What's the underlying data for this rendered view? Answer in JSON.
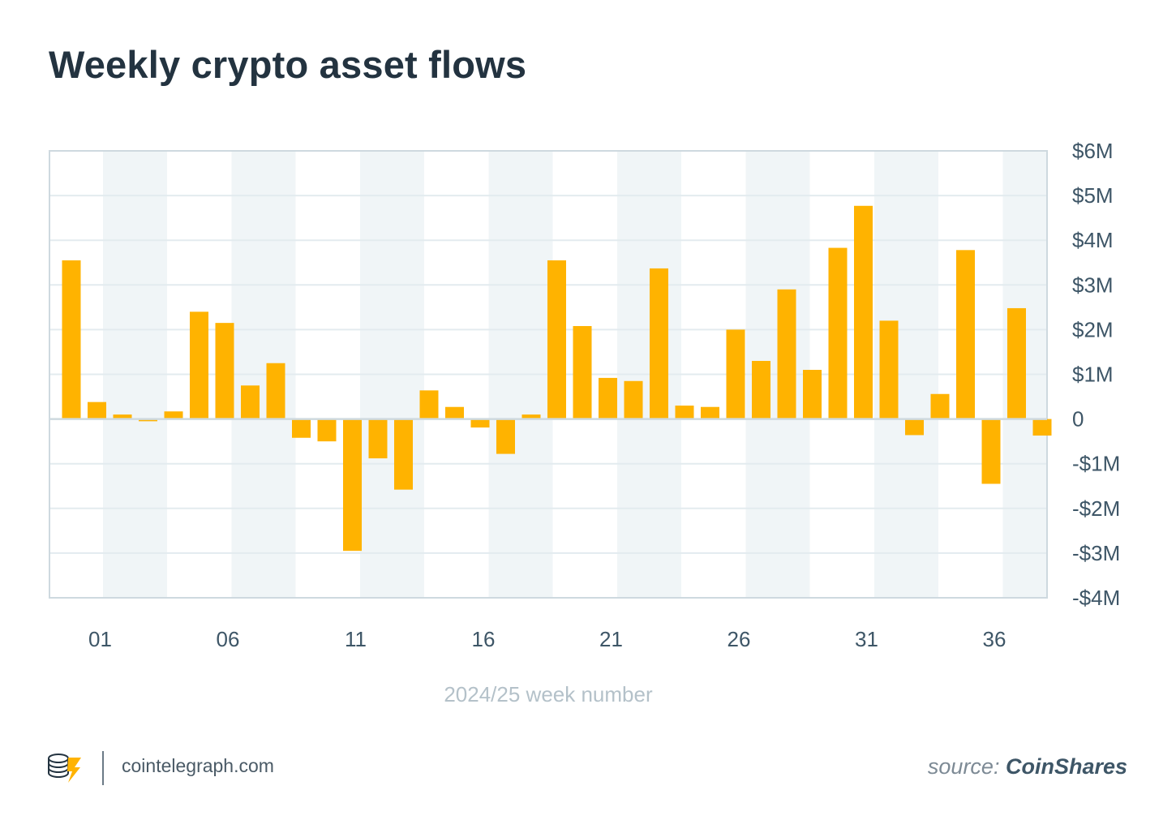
{
  "title": "Weekly crypto asset flows",
  "colors": {
    "bar": "#FFB300",
    "band": "#F0F5F7",
    "grid": "#E3EBEF",
    "axis": "#CED9DF",
    "tick_text": "#3E5667",
    "xlabel_text": "#B4C1C9"
  },
  "chart_data": {
    "type": "bar",
    "title": "Weekly crypto asset flows",
    "xlabel": "2024/25 week number",
    "ylabel": "",
    "ylim": [
      -4,
      6
    ],
    "y_ticks": [
      6,
      5,
      4,
      3,
      2,
      1,
      0,
      -1,
      -2,
      -3,
      -4
    ],
    "y_tick_labels": [
      "$6M",
      "$5M",
      "$4M",
      "$3M",
      "$2M",
      "$1M",
      "0",
      "-$1M",
      "-$2M",
      "-$3M",
      "-$4M"
    ],
    "x_tick_labels": [
      "01",
      "06",
      "11",
      "16",
      "21",
      "26",
      "31",
      "36"
    ],
    "grid": true,
    "values": [
      3.55,
      0.38,
      0.1,
      -0.05,
      0.17,
      2.4,
      2.15,
      0.75,
      1.25,
      -0.42,
      -0.5,
      -2.95,
      -0.88,
      -1.58,
      0.64,
      0.27,
      -0.19,
      -0.78,
      0.1,
      3.55,
      2.08,
      0.92,
      0.85,
      3.37,
      0.3,
      0.27,
      2.0,
      1.3,
      2.9,
      1.1,
      3.83,
      4.77,
      2.2,
      -0.36,
      0.56,
      3.78,
      -1.45,
      2.48,
      -0.37
    ]
  },
  "footer": {
    "site": "cointelegraph.com",
    "source_prefix": "source: ",
    "source_name": "CoinShares"
  }
}
